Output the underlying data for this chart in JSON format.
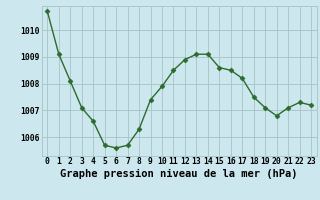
{
  "x": [
    0,
    1,
    2,
    3,
    4,
    5,
    6,
    7,
    8,
    9,
    10,
    11,
    12,
    13,
    14,
    15,
    16,
    17,
    18,
    19,
    20,
    21,
    22,
    23
  ],
  "y": [
    1010.7,
    1009.1,
    1008.1,
    1007.1,
    1006.6,
    1005.7,
    1005.6,
    1005.7,
    1006.3,
    1007.4,
    1007.9,
    1008.5,
    1008.9,
    1009.1,
    1009.1,
    1008.6,
    1008.5,
    1008.2,
    1007.5,
    1007.1,
    1006.8,
    1007.1,
    1007.3,
    1007.2
  ],
  "ylim": [
    1005.3,
    1010.9
  ],
  "yticks": [
    1006,
    1007,
    1008,
    1009,
    1010
  ],
  "xlim": [
    -0.5,
    23.5
  ],
  "xticks": [
    0,
    1,
    2,
    3,
    4,
    5,
    6,
    7,
    8,
    9,
    10,
    11,
    12,
    13,
    14,
    15,
    16,
    17,
    18,
    19,
    20,
    21,
    22,
    23
  ],
  "xlabel": "Graphe pression niveau de la mer (hPa)",
  "line_color": "#2d6b2d",
  "marker": "D",
  "marker_size": 2.5,
  "bg_color": "#cce8ee",
  "grid_color": "#aac8cc",
  "tick_label_fontsize": 5.8,
  "xlabel_fontsize": 7.5
}
